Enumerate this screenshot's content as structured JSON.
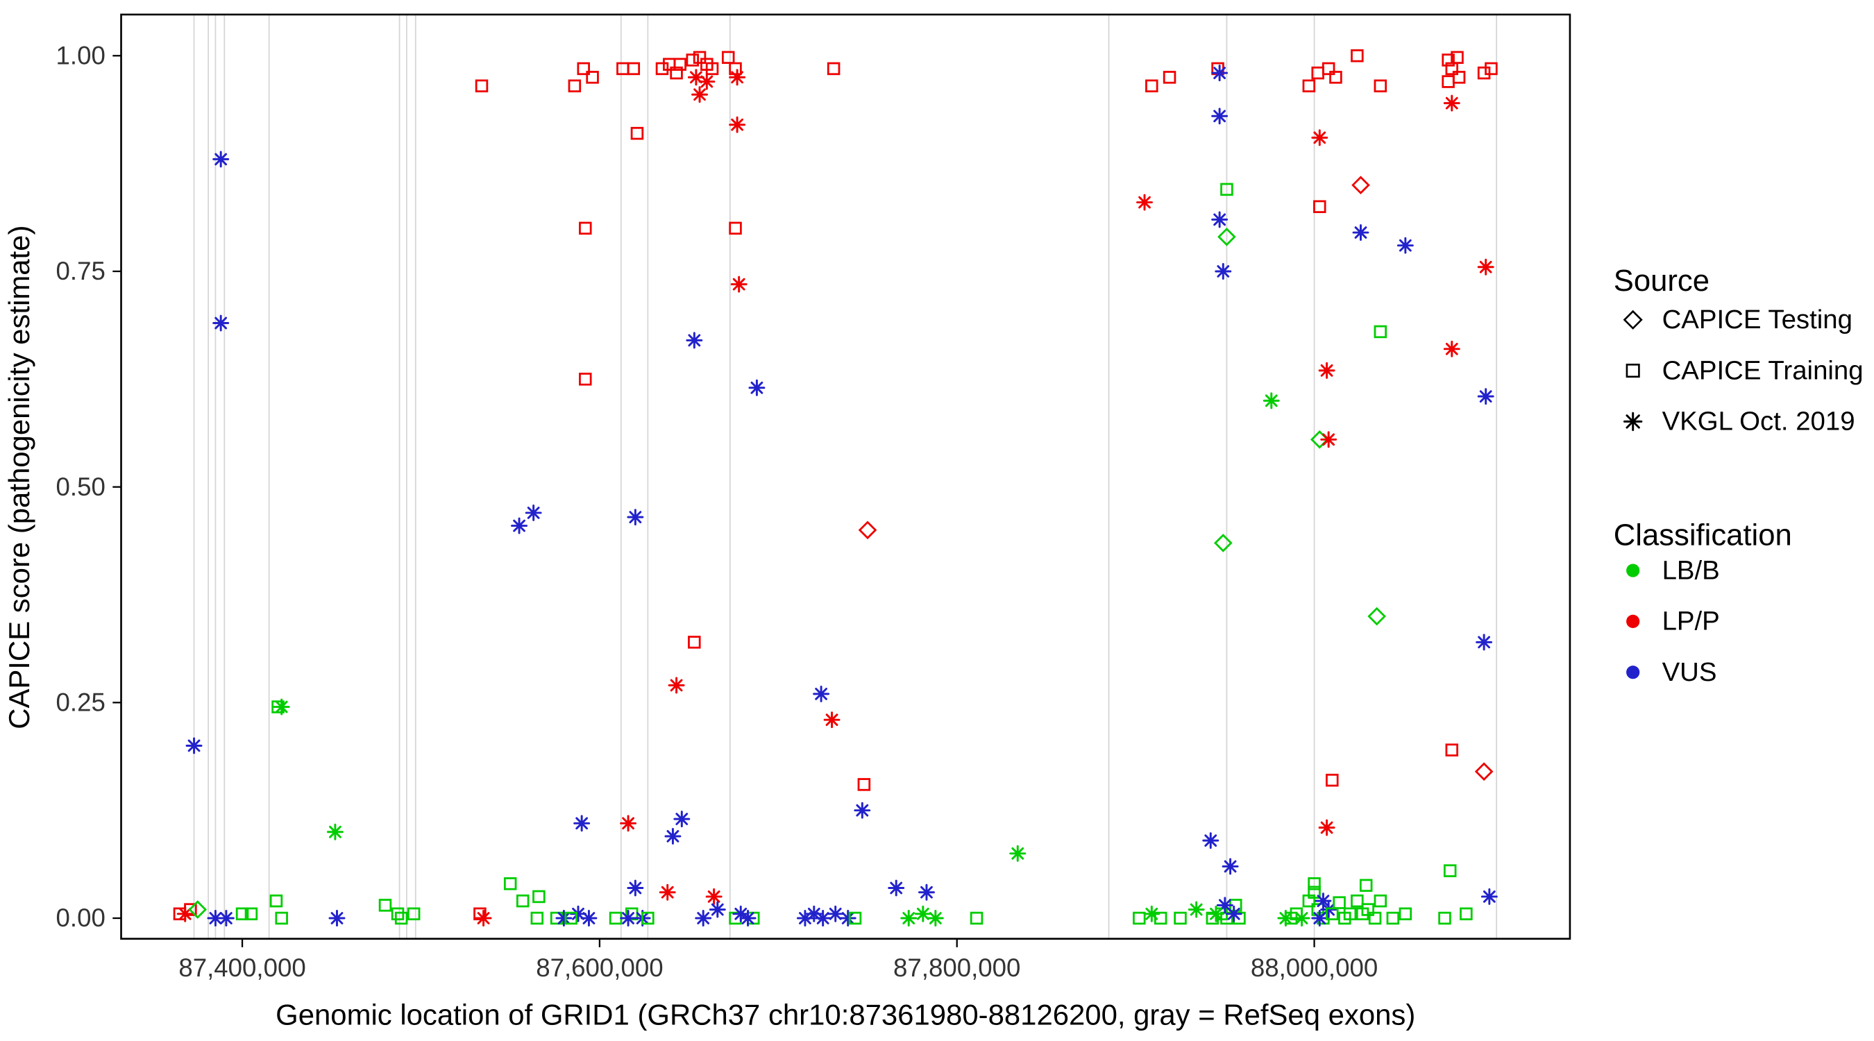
{
  "chart_data": {
    "type": "scatter",
    "title": "",
    "xlabel": "Genomic location of GRID1 (GRCh37 chr10:87361980-88126200, gray = RefSeq exons)",
    "ylabel": "CAPICE score (pathogenicity estimate)",
    "x_axis": {
      "ticks": [
        "87,400,000",
        "87,600,000",
        "87,800,000",
        "88,000,000"
      ],
      "tick_values": [
        87400000,
        87600000,
        87800000,
        88000000
      ],
      "range": [
        87332200,
        88143100
      ]
    },
    "y_axis": {
      "ticks": [
        "0.00",
        "0.25",
        "0.50",
        "0.75",
        "1.00"
      ],
      "tick_values": [
        0,
        0.25,
        0.5,
        0.75,
        1.0
      ],
      "range": [
        0,
        1
      ]
    },
    "grid": false,
    "legend_position": "right",
    "colors": {
      "classification": {
        "LB/B": "#00CD00",
        "LP/P": "#EE0000",
        "VUS": "#2222CC"
      },
      "exon_line": "#D5D5D5",
      "panel_border": "#000000"
    },
    "exon_note": "gray = RefSeq exons",
    "exon_positions": [
      87373000,
      87381000,
      87385000,
      87390000,
      87415000,
      87488000,
      87492000,
      87497000,
      87612000,
      87627000,
      87673000,
      87885000,
      87951000,
      88000000,
      88102000
    ],
    "points_columns": [
      "genomic_position",
      "capice_score",
      "source",
      "classification"
    ],
    "source_codes": {
      "testing": "CAPICE Testing",
      "training": "CAPICE Training",
      "vkgl": "VKGL Oct. 2019"
    },
    "points": [
      [
        87365000,
        0.005,
        "training",
        "LP/P"
      ],
      [
        87368000,
        0.005,
        "vkgl",
        "LP/P"
      ],
      [
        87371000,
        0.01,
        "training",
        "LP/P"
      ],
      [
        87375000,
        0.01,
        "testing",
        "LB/B"
      ],
      [
        87373000,
        0.2,
        "vkgl",
        "VUS"
      ],
      [
        87385000,
        0,
        "vkgl",
        "VUS"
      ],
      [
        87388000,
        0.88,
        "vkgl",
        "VUS"
      ],
      [
        87388000,
        0.69,
        "vkgl",
        "VUS"
      ],
      [
        87391000,
        0,
        "vkgl",
        "VUS"
      ],
      [
        87400000,
        0.005,
        "training",
        "LB/B"
      ],
      [
        87405000,
        0.005,
        "training",
        "LB/B"
      ],
      [
        87419000,
        0.02,
        "training",
        "LB/B"
      ],
      [
        87422000,
        0,
        "training",
        "LB/B"
      ],
      [
        87420000,
        0.245,
        "training",
        "LB/B"
      ],
      [
        87422000,
        0.245,
        "vkgl",
        "LB/B"
      ],
      [
        87452000,
        0.1,
        "vkgl",
        "LB/B"
      ],
      [
        87453000,
        0,
        "vkgl",
        "VUS"
      ],
      [
        87480000,
        0.015,
        "training",
        "LB/B"
      ],
      [
        87487000,
        0.005,
        "training",
        "LB/B"
      ],
      [
        87489000,
        0,
        "training",
        "LB/B"
      ],
      [
        87496000,
        0.005,
        "training",
        "LB/B"
      ],
      [
        87534000,
        0.965,
        "training",
        "LP/P"
      ],
      [
        87533000,
        0.005,
        "training",
        "LP/P"
      ],
      [
        87535000,
        0,
        "vkgl",
        "LP/P"
      ],
      [
        87550000,
        0.04,
        "training",
        "LB/B"
      ],
      [
        87555000,
        0.455,
        "vkgl",
        "VUS"
      ],
      [
        87557000,
        0.02,
        "training",
        "LB/B"
      ],
      [
        87563000,
        0.47,
        "vkgl",
        "VUS"
      ],
      [
        87566000,
        0.025,
        "training",
        "LB/B"
      ],
      [
        87565000,
        0,
        "training",
        "LB/B"
      ],
      [
        87576000,
        0,
        "training",
        "LB/B"
      ],
      [
        87580000,
        0,
        "vkgl",
        "VUS"
      ],
      [
        87586000,
        0.965,
        "training",
        "LP/P"
      ],
      [
        87591000,
        0.985,
        "training",
        "LP/P"
      ],
      [
        87596000,
        0.975,
        "training",
        "LP/P"
      ],
      [
        87592000,
        0.8,
        "training",
        "LP/P"
      ],
      [
        87592000,
        0.625,
        "training",
        "LP/P"
      ],
      [
        87590000,
        0.11,
        "vkgl",
        "VUS"
      ],
      [
        87588000,
        0.005,
        "vkgl",
        "VUS"
      ],
      [
        87584000,
        0,
        "training",
        "LB/B"
      ],
      [
        87594000,
        0,
        "vkgl",
        "VUS"
      ],
      [
        87613000,
        0.985,
        "training",
        "LP/P"
      ],
      [
        87619000,
        0.985,
        "training",
        "LP/P"
      ],
      [
        87621000,
        0.91,
        "training",
        "LP/P"
      ],
      [
        87616000,
        0.11,
        "vkgl",
        "LP/P"
      ],
      [
        87620000,
        0.465,
        "vkgl",
        "VUS"
      ],
      [
        87620000,
        0.035,
        "vkgl",
        "VUS"
      ],
      [
        87609000,
        0,
        "training",
        "LB/B"
      ],
      [
        87618000,
        0.005,
        "training",
        "LB/B"
      ],
      [
        87616000,
        0,
        "vkgl",
        "VUS"
      ],
      [
        87624000,
        0,
        "vkgl",
        "VUS"
      ],
      [
        87627000,
        0,
        "training",
        "LB/B"
      ],
      [
        87635000,
        0.985,
        "training",
        "LP/P"
      ],
      [
        87639000,
        0.99,
        "training",
        "LP/P"
      ],
      [
        87643000,
        0.98,
        "training",
        "LP/P"
      ],
      [
        87645000,
        0.99,
        "training",
        "LP/P"
      ],
      [
        87638000,
        0.03,
        "vkgl",
        "LP/P"
      ],
      [
        87641000,
        0.095,
        "vkgl",
        "VUS"
      ],
      [
        87646000,
        0.115,
        "vkgl",
        "VUS"
      ],
      [
        87643000,
        0.27,
        "vkgl",
        "LP/P"
      ],
      [
        87653000,
        0.32,
        "training",
        "LP/P"
      ],
      [
        87653000,
        0.67,
        "vkgl",
        "VUS"
      ],
      [
        87652000,
        0.995,
        "training",
        "LP/P"
      ],
      [
        87654000,
        0.975,
        "vkgl",
        "LP/P"
      ],
      [
        87656000,
        0.998,
        "training",
        "LP/P"
      ],
      [
        87656000,
        0.955,
        "vkgl",
        "LP/P"
      ],
      [
        87660000,
        0.99,
        "training",
        "LP/P"
      ],
      [
        87660000,
        0.97,
        "vkgl",
        "LP/P"
      ],
      [
        87663000,
        0.985,
        "training",
        "LP/P"
      ],
      [
        87658000,
        0,
        "vkgl",
        "VUS"
      ],
      [
        87664000,
        0.025,
        "vkgl",
        "LP/P"
      ],
      [
        87666000,
        0.01,
        "vkgl",
        "VUS"
      ],
      [
        87672000,
        0.998,
        "training",
        "LP/P"
      ],
      [
        87676000,
        0.985,
        "training",
        "LP/P"
      ],
      [
        87677000,
        0.975,
        "vkgl",
        "LP/P"
      ],
      [
        87677000,
        0.92,
        "vkgl",
        "LP/P"
      ],
      [
        87676000,
        0.8,
        "training",
        "LP/P"
      ],
      [
        87678000,
        0.735,
        "vkgl",
        "LP/P"
      ],
      [
        87688000,
        0.615,
        "vkgl",
        "VUS"
      ],
      [
        87676000,
        0,
        "training",
        "LB/B"
      ],
      [
        87686000,
        0,
        "training",
        "LB/B"
      ],
      [
        87679000,
        0.005,
        "vkgl",
        "VUS"
      ],
      [
        87683000,
        0,
        "vkgl",
        "VUS"
      ],
      [
        87731000,
        0.985,
        "training",
        "LP/P"
      ],
      [
        87724000,
        0.26,
        "vkgl",
        "VUS"
      ],
      [
        87730000,
        0.23,
        "vkgl",
        "LP/P"
      ],
      [
        87750000,
        0.45,
        "testing",
        "LP/P"
      ],
      [
        87748000,
        0.155,
        "training",
        "LP/P"
      ],
      [
        87747000,
        0.125,
        "vkgl",
        "VUS"
      ],
      [
        87715000,
        0,
        "vkgl",
        "VUS"
      ],
      [
        87720000,
        0.005,
        "vkgl",
        "VUS"
      ],
      [
        87725000,
        0,
        "vkgl",
        "VUS"
      ],
      [
        87732000,
        0.005,
        "vkgl",
        "VUS"
      ],
      [
        87739000,
        0,
        "vkgl",
        "VUS"
      ],
      [
        87743000,
        0,
        "training",
        "LB/B"
      ],
      [
        87766000,
        0.035,
        "vkgl",
        "VUS"
      ],
      [
        87783000,
        0.03,
        "vkgl",
        "VUS"
      ],
      [
        87773000,
        0,
        "vkgl",
        "LB/B"
      ],
      [
        87781000,
        0.005,
        "vkgl",
        "LB/B"
      ],
      [
        87788000,
        0,
        "vkgl",
        "LB/B"
      ],
      [
        87811000,
        0,
        "training",
        "LB/B"
      ],
      [
        87834000,
        0.075,
        "vkgl",
        "LB/B"
      ],
      [
        87909000,
        0.965,
        "training",
        "LP/P"
      ],
      [
        87919000,
        0.975,
        "training",
        "LP/P"
      ],
      [
        87905000,
        0.83,
        "vkgl",
        "LP/P"
      ],
      [
        87909000,
        0.005,
        "vkgl",
        "LB/B"
      ],
      [
        87902000,
        0,
        "training",
        "LB/B"
      ],
      [
        87914000,
        0,
        "training",
        "LB/B"
      ],
      [
        87925000,
        0,
        "training",
        "LB/B"
      ],
      [
        87934000,
        0.01,
        "vkgl",
        "LB/B"
      ],
      [
        87946000,
        0.985,
        "training",
        "LP/P"
      ],
      [
        87947000,
        0.98,
        "vkgl",
        "VUS"
      ],
      [
        87947000,
        0.93,
        "vkgl",
        "VUS"
      ],
      [
        87951000,
        0.845,
        "training",
        "LB/B"
      ],
      [
        87947000,
        0.81,
        "vkgl",
        "VUS"
      ],
      [
        87951000,
        0.79,
        "testing",
        "LB/B"
      ],
      [
        87949000,
        0.75,
        "vkgl",
        "VUS"
      ],
      [
        87949000,
        0.435,
        "testing",
        "LB/B"
      ],
      [
        87942000,
        0.09,
        "vkgl",
        "VUS"
      ],
      [
        87953000,
        0.06,
        "vkgl",
        "VUS"
      ],
      [
        87943000,
        0,
        "training",
        "LB/B"
      ],
      [
        87948000,
        0.005,
        "training",
        "LB/B"
      ],
      [
        87951000,
        0,
        "training",
        "LB/B"
      ],
      [
        87956000,
        0.015,
        "training",
        "LB/B"
      ],
      [
        87958000,
        0,
        "training",
        "LB/B"
      ],
      [
        87950000,
        0.015,
        "vkgl",
        "VUS"
      ],
      [
        87955000,
        0.005,
        "vkgl",
        "VUS"
      ],
      [
        87945000,
        0.005,
        "vkgl",
        "LB/B"
      ],
      [
        87976000,
        0.6,
        "vkgl",
        "LB/B"
      ],
      [
        87984000,
        0,
        "vkgl",
        "LB/B"
      ],
      [
        87997000,
        0.965,
        "training",
        "LP/P"
      ],
      [
        88002000,
        0.98,
        "training",
        "LP/P"
      ],
      [
        88008000,
        0.985,
        "training",
        "LP/P"
      ],
      [
        88012000,
        0.975,
        "training",
        "LP/P"
      ],
      [
        88003000,
        0.905,
        "vkgl",
        "LP/P"
      ],
      [
        88003000,
        0.825,
        "training",
        "LP/P"
      ],
      [
        88007000,
        0.635,
        "vkgl",
        "LP/P"
      ],
      [
        88003000,
        0.555,
        "testing",
        "LB/B"
      ],
      [
        88008000,
        0.555,
        "vkgl",
        "LP/P"
      ],
      [
        88010000,
        0.16,
        "training",
        "LP/P"
      ],
      [
        88007000,
        0.105,
        "vkgl",
        "LP/P"
      ],
      [
        88024000,
        1,
        "training",
        "LP/P"
      ],
      [
        88026000,
        0.85,
        "testing",
        "LP/P"
      ],
      [
        88037000,
        0.965,
        "training",
        "LP/P"
      ],
      [
        88026000,
        0.795,
        "vkgl",
        "VUS"
      ],
      [
        88051000,
        0.78,
        "vkgl",
        "VUS"
      ],
      [
        88037000,
        0.68,
        "training",
        "LB/B"
      ],
      [
        88035000,
        0.35,
        "testing",
        "LB/B"
      ],
      [
        87987000,
        0,
        "training",
        "LB/B"
      ],
      [
        87990000,
        0.005,
        "training",
        "LB/B"
      ],
      [
        87993000,
        0,
        "vkgl",
        "LB/B"
      ],
      [
        87997000,
        0.02,
        "training",
        "LB/B"
      ],
      [
        88000000,
        0.03,
        "training",
        "LB/B"
      ],
      [
        88000000,
        0.04,
        "training",
        "LB/B"
      ],
      [
        88002000,
        0.01,
        "training",
        "LB/B"
      ],
      [
        88005000,
        0,
        "training",
        "LB/B"
      ],
      [
        88005000,
        0.02,
        "vkgl",
        "VUS"
      ],
      [
        88008000,
        0.01,
        "vkgl",
        "VUS"
      ],
      [
        88003000,
        0,
        "vkgl",
        "VUS"
      ],
      [
        88010000,
        0.005,
        "training",
        "LB/B"
      ],
      [
        88014000,
        0.018,
        "training",
        "LB/B"
      ],
      [
        88017000,
        0,
        "training",
        "LB/B"
      ],
      [
        88020000,
        0.005,
        "training",
        "LB/B"
      ],
      [
        88024000,
        0.02,
        "training",
        "LB/B"
      ],
      [
        88027000,
        0.005,
        "training",
        "LB/B"
      ],
      [
        88029000,
        0.038,
        "training",
        "LB/B"
      ],
      [
        88030000,
        0.01,
        "training",
        "LB/B"
      ],
      [
        88034000,
        0,
        "training",
        "LB/B"
      ],
      [
        88037000,
        0.02,
        "training",
        "LB/B"
      ],
      [
        88044000,
        0,
        "training",
        "LB/B"
      ],
      [
        88051000,
        0.005,
        "training",
        "LB/B"
      ],
      [
        88075000,
        0.995,
        "training",
        "LP/P"
      ],
      [
        88077000,
        0.985,
        "training",
        "LP/P"
      ],
      [
        88080000,
        0.998,
        "training",
        "LP/P"
      ],
      [
        88075000,
        0.97,
        "training",
        "LP/P"
      ],
      [
        88081000,
        0.975,
        "training",
        "LP/P"
      ],
      [
        88077000,
        0.945,
        "vkgl",
        "LP/P"
      ],
      [
        88095000,
        0.98,
        "training",
        "LP/P"
      ],
      [
        88099000,
        0.985,
        "training",
        "LP/P"
      ],
      [
        88096000,
        0.755,
        "vkgl",
        "LP/P"
      ],
      [
        88077000,
        0.66,
        "vkgl",
        "LP/P"
      ],
      [
        88096000,
        0.605,
        "vkgl",
        "VUS"
      ],
      [
        88095000,
        0.32,
        "vkgl",
        "VUS"
      ],
      [
        88077000,
        0.195,
        "training",
        "LP/P"
      ],
      [
        88095000,
        0.17,
        "testing",
        "LP/P"
      ],
      [
        88076000,
        0.055,
        "training",
        "LB/B"
      ],
      [
        88098000,
        0.025,
        "vkgl",
        "VUS"
      ],
      [
        88073000,
        0,
        "training",
        "LB/B"
      ],
      [
        88085000,
        0.005,
        "training",
        "LB/B"
      ]
    ]
  },
  "legend": {
    "source": {
      "title": "Source",
      "items": [
        {
          "label": "CAPICE Testing",
          "symbol": "diamond"
        },
        {
          "label": "CAPICE Training",
          "symbol": "square"
        },
        {
          "label": "VKGL Oct. 2019",
          "symbol": "asterisk"
        }
      ]
    },
    "classification": {
      "title": "Classification",
      "items": [
        {
          "label": "LB/B",
          "color": "#00CD00"
        },
        {
          "label": "LP/P",
          "color": "#EE0000"
        },
        {
          "label": "VUS",
          "color": "#2222CC"
        }
      ]
    }
  }
}
